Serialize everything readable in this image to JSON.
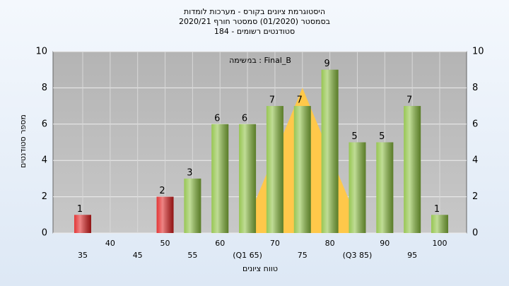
{
  "chart_data": {
    "type": "bar",
    "title": "היסטוגרמת ציונים בקורס - מערכות לומדות",
    "subtitle": "בסמסטר  (01/2020)  סמסטר חורף 2020/21",
    "subtitle2": "סטודנטים רשומים - 184",
    "annotation": "במשימה : Final_B",
    "x_label": "טווח ציונים",
    "y_label": "מספר סטודנטים",
    "categories": [
      "35",
      "40",
      "45",
      "50",
      "55",
      "60",
      "(Q1 65)",
      "70",
      "75",
      "80",
      "(Q3 85)",
      "90",
      "95",
      "100"
    ],
    "values": [
      1,
      0,
      0,
      2,
      3,
      6,
      6,
      7,
      7,
      9,
      5,
      5,
      7,
      1
    ],
    "colors": [
      "#e02020",
      "#e02020",
      "#e02020",
      "#e02020",
      "#8cc040",
      "#8cc040",
      "#8cc040",
      "#8cc040",
      "#8cc040",
      "#8cc040",
      "#8cc040",
      "#8cc040",
      "#8cc040",
      "#8cc040"
    ],
    "area": {
      "color": "#ffc84a",
      "x": [
        64,
        75,
        86
      ],
      "values": [
        0,
        8,
        0
      ]
    },
    "ylim": [
      0,
      10
    ],
    "yticks": [
      0,
      2,
      4,
      6,
      8,
      10
    ],
    "grid": true
  }
}
